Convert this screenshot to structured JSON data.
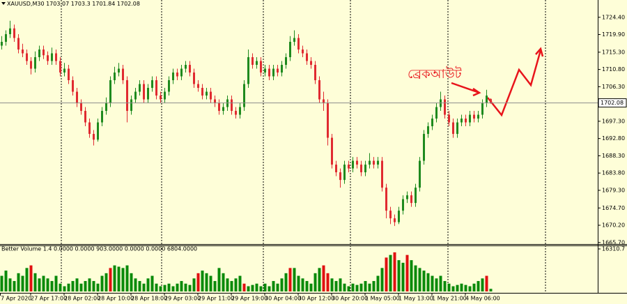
{
  "chart_data": {
    "type": "candlestick",
    "symbol": "XAUUSD,M30",
    "categories": [
      "7 Apr 2020",
      null,
      null,
      null,
      null,
      null,
      null,
      null,
      "27 Apr 17:00",
      null,
      null,
      null,
      null,
      null,
      null,
      null,
      "28 Apr 02:00",
      null,
      null,
      null,
      null,
      null,
      null,
      null,
      "28 Apr 10:00",
      null,
      null,
      null,
      null,
      null,
      null,
      null,
      "28 Apr 18:00",
      null,
      null,
      null,
      null,
      null,
      null,
      null,
      "29 Apr 03:00",
      null,
      null,
      null,
      null,
      null,
      null,
      null,
      "29 Apr 11:00",
      null,
      null,
      null,
      null,
      null,
      null,
      null,
      "29 Apr 19:00",
      null,
      null,
      null,
      null,
      null,
      null,
      null,
      "30 Apr 04:00",
      null,
      null,
      null,
      null,
      null,
      null,
      null,
      "30 Apr 12:00",
      null,
      null,
      null,
      null,
      null,
      null,
      null,
      "30 Apr 20:00",
      null,
      null,
      null,
      null,
      null,
      null,
      null,
      "1 May 05:00",
      null,
      null,
      null,
      null,
      null,
      null,
      null,
      "1 May 13:00",
      null,
      null,
      null,
      null,
      null,
      null,
      null,
      "1 May 21:00",
      null,
      null,
      null,
      null,
      null,
      null,
      null,
      "4 May 06:00",
      null,
      null,
      null,
      null,
      null
    ],
    "open": [
      1717,
      1718,
      1720,
      1721.5,
      1719,
      1716,
      1715,
      1713,
      1711,
      1714,
      1716,
      1714.5,
      1713,
      1715,
      1713,
      1710,
      1711,
      1708,
      1705,
      1702,
      1700,
      1697,
      1694,
      1692.5,
      1697,
      1700,
      1702,
      1708,
      1710,
      1711,
      1708,
      1700,
      1703,
      1705,
      1707,
      1703,
      1706,
      1708,
      1704,
      1703,
      1705,
      1708,
      1710,
      1709,
      1711,
      1712,
      1710,
      1707,
      1706,
      1704,
      1705,
      1703,
      1702,
      1700,
      1701,
      1703,
      1700,
      1699,
      1701,
      1707,
      1714,
      1712,
      1713,
      1710,
      1711,
      1709,
      1711,
      1710,
      1712,
      1714,
      1718,
      1719,
      1716,
      1715,
      1713,
      1712,
      1708,
      1703,
      1702,
      1693,
      1686,
      1684,
      1682,
      1686,
      1685,
      1687,
      1686,
      1684,
      1686,
      1687,
      1686,
      1687,
      1680,
      1674,
      1672,
      1671,
      1674,
      1677,
      1678,
      1676,
      1680,
      1687,
      1694,
      1696,
      1698,
      1701,
      1703,
      1699,
      1697,
      1694,
      1697,
      1698,
      1697,
      1699,
      1698,
      1699,
      1702,
      1703.07
    ],
    "high": [
      1719.5,
      1721,
      1723.5,
      1722.5,
      1720,
      1717.5,
      1716,
      1714,
      1715.5,
      1717,
      1717,
      1715.5,
      1716.5,
      1716,
      1714,
      1712.5,
      1712,
      1709,
      1706,
      1703,
      1701,
      1698,
      1695,
      1698,
      1701,
      1703.5,
      1709,
      1711.5,
      1712.5,
      1712,
      1709,
      1704,
      1706,
      1708,
      1708,
      1707,
      1709,
      1709,
      1705,
      1706,
      1709,
      1711,
      1711,
      1712,
      1713,
      1713,
      1711,
      1708,
      1707,
      1706,
      1706,
      1704,
      1703,
      1702,
      1704,
      1704,
      1701,
      1702,
      1708,
      1716,
      1715,
      1714,
      1714,
      1712,
      1712,
      1712,
      1712,
      1713,
      1715,
      1719.5,
      1721,
      1720,
      1717,
      1716,
      1714,
      1713,
      1709,
      1705,
      1703,
      1694,
      1687,
      1685,
      1687,
      1687,
      1688,
      1688,
      1687,
      1687,
      1689,
      1688,
      1688,
      1688,
      1681,
      1675,
      1673,
      1675,
      1678,
      1679,
      1679,
      1681,
      1688,
      1695,
      1697,
      1699,
      1702,
      1705,
      1704,
      1700,
      1698,
      1698,
      1699,
      1699,
      1700,
      1700,
      1700,
      1703,
      1705.5,
      1703.3
    ],
    "low": [
      1716,
      1717,
      1719,
      1718,
      1715,
      1714,
      1712,
      1709.5,
      1710,
      1713,
      1713.5,
      1712,
      1712,
      1712,
      1709,
      1709,
      1707,
      1704,
      1701,
      1699,
      1696,
      1693,
      1691,
      1692,
      1696,
      1699,
      1701,
      1707,
      1709,
      1707,
      1697,
      1699,
      1702,
      1704,
      1702,
      1702,
      1705,
      1703,
      1702,
      1702,
      1704,
      1707,
      1708,
      1708,
      1710,
      1709,
      1706,
      1705,
      1703,
      1703,
      1702,
      1701,
      1699,
      1699,
      1700,
      1699,
      1698,
      1698,
      1700,
      1706,
      1711,
      1711,
      1709,
      1709,
      1708,
      1708,
      1709,
      1709,
      1711,
      1713,
      1717,
      1715,
      1714,
      1712,
      1711,
      1707,
      1702,
      1700,
      1691,
      1685,
      1683,
      1680,
      1681,
      1684,
      1684,
      1685,
      1683,
      1683,
      1685,
      1685,
      1685,
      1679,
      1672,
      1670.5,
      1670,
      1670.5,
      1673,
      1676,
      1675,
      1675,
      1679,
      1686,
      1693,
      1695,
      1697,
      1700,
      1698,
      1696,
      1693,
      1693,
      1696,
      1696,
      1696,
      1697,
      1697,
      1698,
      1701,
      1701.84
    ],
    "close": [
      1718,
      1720,
      1721.5,
      1719,
      1716,
      1715,
      1713,
      1711,
      1714,
      1716,
      1714.5,
      1713,
      1715,
      1713,
      1710,
      1711,
      1708,
      1705,
      1702,
      1700,
      1697,
      1694,
      1692.5,
      1697,
      1700,
      1702,
      1708,
      1710,
      1711,
      1708,
      1700,
      1703,
      1705,
      1707,
      1703,
      1706,
      1708,
      1704,
      1703,
      1705,
      1708,
      1710,
      1709,
      1711,
      1712,
      1710,
      1707,
      1706,
      1704,
      1705,
      1703,
      1702,
      1700,
      1701,
      1703,
      1700,
      1699,
      1701,
      1707,
      1714,
      1712,
      1713,
      1710,
      1711,
      1709,
      1711,
      1710,
      1712,
      1714,
      1718,
      1719,
      1716,
      1715,
      1713,
      1712,
      1708,
      1703,
      1702,
      1693,
      1686,
      1684,
      1682,
      1686,
      1685,
      1687,
      1686,
      1684,
      1686,
      1687,
      1686,
      1687,
      1680,
      1674,
      1672,
      1671,
      1674,
      1677,
      1678,
      1676,
      1680,
      1687,
      1694,
      1696,
      1698,
      1701,
      1703,
      1699,
      1697,
      1694,
      1697,
      1698,
      1697,
      1699,
      1698,
      1699,
      1702,
      1704,
      1702.08
    ],
    "up_color": "#1e8a1e",
    "down_color": "#e02a30",
    "ylim": [
      1665.3,
      1728.9
    ],
    "yticks": [
      {
        "value": 1724.4,
        "label": "1724.40"
      },
      {
        "value": 1719.9,
        "label": "1719.90"
      },
      {
        "value": 1715.3,
        "label": "1715.30"
      },
      {
        "value": 1710.8,
        "label": "1710.80"
      },
      {
        "value": 1706.3,
        "label": "1706.30"
      },
      {
        "value": 1697.3,
        "label": "1697.30"
      },
      {
        "value": 1692.8,
        "label": "1692.80"
      },
      {
        "value": 1688.3,
        "label": "1688.30"
      },
      {
        "value": 1683.8,
        "label": "1683.80"
      },
      {
        "value": 1679.3,
        "label": "1679.30"
      },
      {
        "value": 1674.7,
        "label": "1674.70"
      },
      {
        "value": 1670.2,
        "label": "1670.20"
      },
      {
        "value": 1665.7,
        "label": "1665.70"
      }
    ],
    "annotation": "ব্রেকআউট",
    "volume": {
      "title": "Better Volume 1.4 0.0000 0.0000 903.0000 0.0000 0.0000 6804.0000",
      "values": [
        6000,
        8000,
        5000,
        4000,
        7000,
        6000,
        9000,
        10000,
        7000,
        5000,
        6000,
        5000,
        4000,
        6000,
        3000,
        2000,
        3000,
        4000,
        5000,
        3000,
        4000,
        5000,
        4000,
        3000,
        6000,
        7000,
        9000,
        10000,
        9500,
        9000,
        10000,
        7000,
        5000,
        4000,
        3000,
        5000,
        6000,
        3000,
        2000,
        2500,
        3000,
        2000,
        3000,
        4000,
        3000,
        2500,
        5000,
        7000,
        8000,
        7000,
        6000,
        4000,
        9000,
        7000,
        5000,
        4000,
        5000,
        6000,
        3000,
        2000,
        2500,
        3000,
        2000,
        3000,
        2000,
        4000,
        3000,
        5000,
        7000,
        9000,
        9000,
        6000,
        5000,
        4000,
        3000,
        7000,
        9000,
        10000,
        7000,
        5000,
        4000,
        5000,
        3000,
        2000,
        3000,
        2500,
        3000,
        4000,
        3000,
        4000,
        6000,
        9000,
        13000,
        14000,
        15000,
        12000,
        11000,
        14000,
        12000,
        10000,
        9000,
        8000,
        7000,
        6000,
        5000,
        6000,
        4000,
        3000,
        2000,
        2500,
        3000,
        2500,
        2000,
        3000,
        4000,
        5000,
        6000,
        1000
      ],
      "colors": [
        "#0a8a0a",
        "#0a8a0a",
        "#0a8a0a",
        "#0a8a0a",
        "#0a8a0a",
        "#0a8a0a",
        "#0a8a0a",
        "#e01010",
        "#0a8a0a",
        "#0a8a0a",
        "#0a8a0a",
        "#0a8a0a",
        "#0a8a0a",
        "#0a8a0a",
        "#0a8a0a",
        "#0a8a0a",
        "#0a8a0a",
        "#0a8a0a",
        "#0a8a0a",
        "#0a8a0a",
        "#0a8a0a",
        "#0a8a0a",
        "#0a8a0a",
        "#0a8a0a",
        "#0a8a0a",
        "#0a8a0a",
        "#e01010",
        "#0a8a0a",
        "#0a8a0a",
        "#0a8a0a",
        "#0a8a0a",
        "#0a8a0a",
        "#0a8a0a",
        "#0a8a0a",
        "#0a8a0a",
        "#0a8a0a",
        "#0a8a0a",
        "#0a8a0a",
        "#0a8a0a",
        "#0a8a0a",
        "#0a8a0a",
        "#0a8a0a",
        "#0a8a0a",
        "#0a8a0a",
        "#0a8a0a",
        "#0a8a0a",
        "#0a8a0a",
        "#e01010",
        "#0a8a0a",
        "#0a8a0a",
        "#0a8a0a",
        "#0a8a0a",
        "#0a8a0a",
        "#0a8a0a",
        "#0a8a0a",
        "#0a8a0a",
        "#0a8a0a",
        "#0a8a0a",
        "#e01010",
        "#0a8a0a",
        "#0a8a0a",
        "#0a8a0a",
        "#0a8a0a",
        "#0a8a0a",
        "#0a8a0a",
        "#0a8a0a",
        "#0a8a0a",
        "#0a8a0a",
        "#0a8a0a",
        "#e01010",
        "#0a8a0a",
        "#0a8a0a",
        "#0a8a0a",
        "#0a8a0a",
        "#0a8a0a",
        "#0a8a0a",
        "#0a8a0a",
        "#e01010",
        "#e01010",
        "#0a8a0a",
        "#0a8a0a",
        "#0a8a0a",
        "#0a8a0a",
        "#0a8a0a",
        "#0a8a0a",
        "#0a8a0a",
        "#0a8a0a",
        "#0a8a0a",
        "#0a8a0a",
        "#0a8a0a",
        "#0a8a0a",
        "#0a8a0a",
        "#e01010",
        "#0a8a0a",
        "#e01010",
        "#0a8a0a",
        "#0a8a0a",
        "#e01010",
        "#0a8a0a",
        "#0a8a0a",
        "#0a8a0a",
        "#0a8a0a",
        "#0a8a0a",
        "#0a8a0a",
        "#0a8a0a",
        "#0a8a0a",
        "#0a8a0a",
        "#0a8a0a",
        "#0a8a0a",
        "#0a8a0a",
        "#0a8a0a",
        "#0a8a0a",
        "#0a8a0a",
        "#0a8a0a",
        "#0a8a0a",
        "#0a8a0a",
        "#e01010",
        "#0a8a0a"
      ],
      "ylim": [
        0,
        16310.7
      ],
      "yticks": [
        16310.7
      ]
    }
  }
}
